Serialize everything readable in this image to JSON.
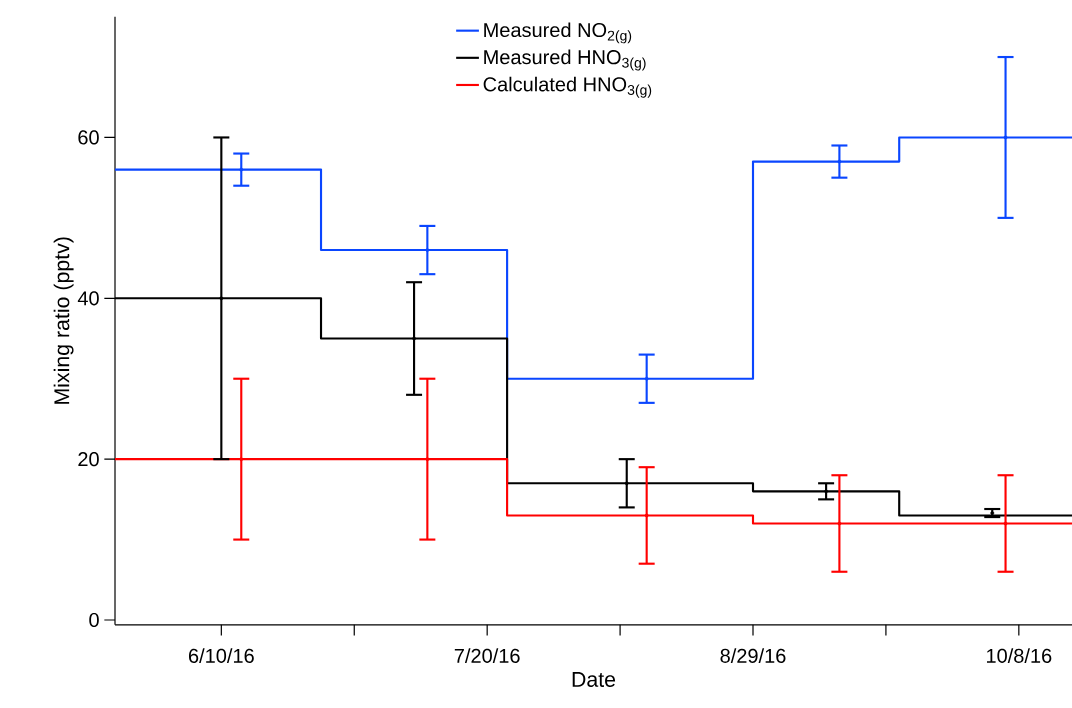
{
  "chart_data": {
    "type": "step",
    "xlabel": "Date",
    "ylabel": "Mixing ratio (pptv)",
    "xlim": [
      "2016-05-25",
      "2016-10-16"
    ],
    "ylim": [
      -0.6,
      75
    ],
    "xticks": [
      {
        "value": "2016-06-10",
        "label": "6/10/16"
      },
      {
        "value": "2016-06-30",
        "label": null
      },
      {
        "value": "2016-07-20",
        "label": "7/20/16"
      },
      {
        "value": "2016-08-09",
        "label": null
      },
      {
        "value": "2016-08-29",
        "label": "8/29/16"
      },
      {
        "value": "2016-09-18",
        "label": null
      },
      {
        "value": "2016-10-08",
        "label": "10/8/16"
      }
    ],
    "yticks": [
      0,
      20,
      40,
      60
    ],
    "grid": false,
    "legend": "top",
    "marker": "none",
    "line_style": "solid",
    "series": [
      {
        "name": "Measured NO$_{2(g)}$",
        "color": "#0a46ff",
        "x": [
          "2016-05-25",
          "2016-06-25",
          "2016-07-23",
          "2016-08-29",
          "2016-09-20",
          "2016-10-16"
        ],
        "values": [
          56,
          46,
          30,
          57,
          60,
          60
        ]
      },
      {
        "name": "Measured HNO$_{3(g)}$",
        "color": "#000000",
        "x": [
          "2016-05-25",
          "2016-06-25",
          "2016-07-23",
          "2016-08-29",
          "2016-09-20",
          "2016-10-16"
        ],
        "values": [
          40,
          35,
          17,
          16,
          13,
          13
        ]
      },
      {
        "name": "Calculated HNO$_{3(g)}$",
        "color": "#ff0000",
        "x": [
          "2016-05-25",
          "2016-07-23",
          "2016-08-29",
          "2016-10-16"
        ],
        "values": [
          20,
          13,
          12,
          12
        ]
      },
      {
        "type": "scatter",
        "color": "#0a46ff",
        "x": [
          "2016-06-13",
          "2016-07-11",
          "2016-08-13",
          "2016-09-11",
          "2016-10-06"
        ],
        "values": [
          56,
          46,
          30,
          57,
          60
        ],
        "errors": [
          2,
          3,
          3,
          2,
          10
        ]
      },
      {
        "type": "scatter",
        "color": "#000000",
        "x": [
          "2016-06-10",
          "2016-07-09",
          "2016-08-10",
          "2016-09-09",
          "2016-10-04"
        ],
        "values": [
          40,
          35,
          17,
          16,
          13.3
        ],
        "errors": [
          20,
          7,
          3,
          1,
          0.5
        ]
      },
      {
        "type": "scatter",
        "color": "#ff0000",
        "x": [
          "2016-06-13",
          "2016-07-11",
          "2016-08-13",
          "2016-09-11",
          "2016-10-06"
        ],
        "values": [
          20,
          20,
          13,
          12,
          12
        ],
        "errors": [
          10,
          10,
          6,
          6,
          6
        ]
      }
    ]
  }
}
